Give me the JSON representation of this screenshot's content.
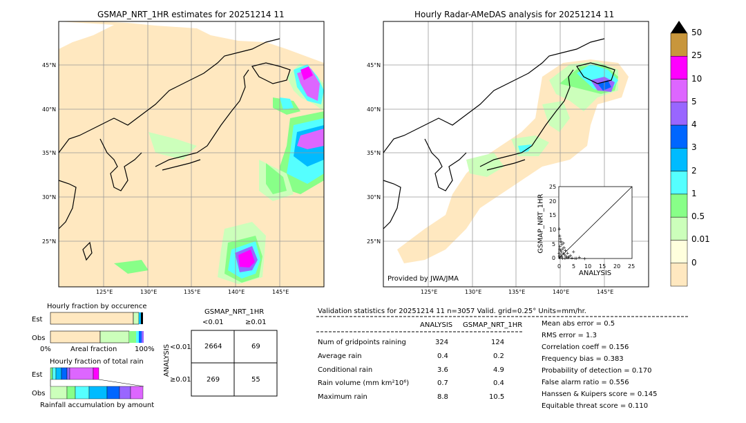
{
  "left_map": {
    "title": "GSMAP_NRT_1HR estimates for 20251214 11",
    "lat_labels": [
      "45°N",
      "40°N",
      "35°N",
      "30°N",
      "25°N"
    ],
    "lon_labels": [
      "125°E",
      "130°E",
      "135°E",
      "140°E",
      "145°E"
    ]
  },
  "right_map": {
    "title": "Hourly Radar-AMeDAS analysis for 20251214 11",
    "lat_labels": [
      "45°N",
      "40°N",
      "35°N",
      "30°N",
      "25°N"
    ],
    "lon_labels": [
      "125°E",
      "130°E",
      "135°E",
      "140°E",
      "145°E"
    ],
    "credit": "Provided by JWA/JMA"
  },
  "colorbar": {
    "labels": [
      "50",
      "25",
      "10",
      "5",
      "4",
      "3",
      "2",
      "1",
      "0.5",
      "0.01",
      "0"
    ],
    "colors": [
      "#c8963c",
      "#ff00ff",
      "#dd66ff",
      "#9966ff",
      "#0066ff",
      "#00bbff",
      "#55ffff",
      "#88ff88",
      "#ccffbb",
      "#ffffdd",
      "#ffe8c0"
    ]
  },
  "scatter": {
    "ylabel": "GSMAP_NRT_1HR",
    "xlabel": "ANALYSIS",
    "ticks": [
      "0",
      "5",
      "10",
      "15",
      "20",
      "25"
    ]
  },
  "fraction_occurrence": {
    "title": "Hourly fraction by occurence",
    "rows": [
      "Est",
      "Obs"
    ],
    "axis_left": "0%",
    "axis_mid": "Areal fraction",
    "axis_right": "100%"
  },
  "fraction_total": {
    "title": "Hourly fraction of total rain",
    "rows": [
      "Est",
      "Obs"
    ],
    "caption": "Rainfall accumulation by amount"
  },
  "contingency": {
    "title": "GSMAP_NRT_1HR",
    "col_headers": [
      "<0.01",
      "≥0.01"
    ],
    "row_axis": "ANALYSIS",
    "row_headers": [
      "<0.01",
      "≥0.01"
    ],
    "cells": [
      [
        "2664",
        "69"
      ],
      [
        "269",
        "55"
      ]
    ]
  },
  "validation": {
    "header": "Validation statistics for 20251214 11  n=3057 Valid. grid=0.25° Units=mm/hr.",
    "col_analysis": "ANALYSIS",
    "col_gsmap": "GSMAP_NRT_1HR",
    "rows": [
      {
        "label": "Num of gridpoints raining",
        "analysis": "324",
        "gsmap": "124"
      },
      {
        "label": "Average rain",
        "analysis": "0.4",
        "gsmap": "0.2"
      },
      {
        "label": "Conditional rain",
        "analysis": "3.6",
        "gsmap": "4.9"
      },
      {
        "label": "Rain volume (mm km²10⁶)",
        "analysis": "0.7",
        "gsmap": "0.4"
      },
      {
        "label": "Maximum rain",
        "analysis": "8.8",
        "gsmap": "10.5"
      }
    ],
    "scores": [
      "Mean abs error =    0.5",
      "RMS error =    1.3",
      "Correlation coeff =  0.156",
      "Frequency bias =  0.383",
      "Probability of detection =  0.170",
      "False alarm ratio =  0.556",
      "Hanssen & Kuipers score =  0.145",
      "Equitable threat score =  0.110"
    ]
  },
  "chart_data": [
    {
      "type": "scatter",
      "title": "",
      "xlabel": "ANALYSIS",
      "ylabel": "GSMAP_NRT_1HR",
      "xlim": [
        0,
        25
      ],
      "ylim": [
        0,
        25
      ],
      "points": [
        [
          0.2,
          10.5
        ],
        [
          0.3,
          8
        ],
        [
          0.5,
          6
        ],
        [
          0.4,
          4.5
        ],
        [
          0.6,
          3
        ],
        [
          0.8,
          2.5
        ],
        [
          1,
          5
        ],
        [
          1.2,
          3.5
        ],
        [
          1.5,
          2
        ],
        [
          1.8,
          4
        ],
        [
          2,
          1.5
        ],
        [
          2.2,
          3
        ],
        [
          2.5,
          1
        ],
        [
          2.8,
          0.5
        ],
        [
          3,
          2
        ],
        [
          3.5,
          0.8
        ],
        [
          4,
          1.2
        ],
        [
          4.5,
          0.4
        ],
        [
          5,
          2.5
        ],
        [
          5.5,
          0.3
        ],
        [
          6,
          0.2
        ],
        [
          7,
          0.6
        ],
        [
          8.8,
          0.1
        ],
        [
          0.2,
          1
        ],
        [
          0.4,
          0.5
        ],
        [
          0.7,
          1.5
        ],
        [
          1,
          0.8
        ],
        [
          1.3,
          0.3
        ],
        [
          0.1,
          2
        ],
        [
          0.3,
          3.5
        ],
        [
          0.5,
          7
        ],
        [
          0.9,
          6
        ],
        [
          1.6,
          5.5
        ],
        [
          2.1,
          0.2
        ],
        [
          3.2,
          0.5
        ]
      ]
    }
  ]
}
